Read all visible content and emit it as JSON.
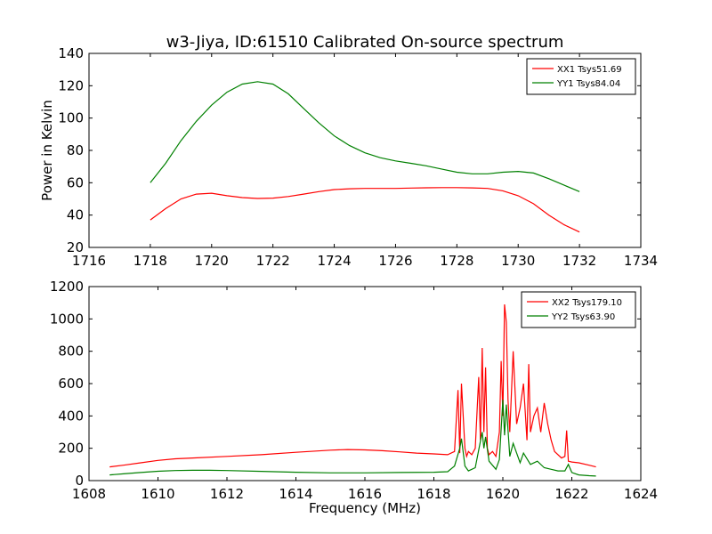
{
  "title": "w3-Jiya, ID:61510 Calibrated On-source spectrum",
  "colors": {
    "red": "#ff0000",
    "green": "#008000",
    "axes": "#000000",
    "background": "#ffffff"
  },
  "chart_data": [
    {
      "type": "line",
      "title": "w3-Jiya, ID:61510 Calibrated On-source spectrum",
      "xlabel": "",
      "ylabel": "Power in Kelvin",
      "xlim": [
        1716,
        1734
      ],
      "ylim": [
        20,
        140
      ],
      "x_ticks": [
        "1716",
        "1718",
        "1720",
        "1722",
        "1724",
        "1726",
        "1728",
        "1730",
        "1732",
        "1734"
      ],
      "y_ticks": [
        "20",
        "40",
        "60",
        "80",
        "100",
        "120",
        "140"
      ],
      "grid": false,
      "legend_position": "top-right",
      "series": [
        {
          "name": "XX1 Tsys51.69",
          "color": "#ff0000",
          "x": [
            1718,
            1718.5,
            1719,
            1719.5,
            1720,
            1720.5,
            1721,
            1721.5,
            1722,
            1722.5,
            1723,
            1723.5,
            1724,
            1724.5,
            1725,
            1725.5,
            1726,
            1726.5,
            1727,
            1727.5,
            1728,
            1728.5,
            1729,
            1729.5,
            1730,
            1730.5,
            1731,
            1731.5,
            1732
          ],
          "y": [
            37,
            44,
            50,
            53,
            53.5,
            52,
            50.8,
            50.3,
            50.5,
            51.5,
            53,
            54.5,
            55.8,
            56.3,
            56.5,
            56.5,
            56.5,
            56.7,
            56.9,
            57,
            57,
            56.8,
            56.5,
            55,
            52,
            47,
            40,
            34,
            29.5
          ]
        },
        {
          "name": "YY1 Tsys84.04",
          "color": "#008000",
          "x": [
            1718,
            1718.5,
            1719,
            1719.5,
            1720,
            1720.5,
            1721,
            1721.5,
            1722,
            1722.5,
            1723,
            1723.5,
            1724,
            1724.5,
            1725,
            1725.5,
            1726,
            1726.5,
            1727,
            1727.5,
            1728,
            1728.5,
            1729,
            1729.5,
            1730,
            1730.5,
            1731,
            1731.5,
            1732
          ],
          "y": [
            60,
            72,
            86,
            98,
            108,
            116,
            121,
            122.5,
            121,
            115,
            106,
            97,
            89,
            83,
            78.5,
            75.5,
            73.5,
            72,
            70.5,
            68.5,
            66.5,
            65.5,
            65.5,
            66.5,
            67,
            66,
            62.5,
            58.5,
            54.5
          ]
        }
      ]
    },
    {
      "type": "line",
      "title": "",
      "xlabel": "Frequency (MHz)",
      "ylabel": "",
      "xlim": [
        1608,
        1624
      ],
      "ylim": [
        0,
        1200
      ],
      "x_ticks": [
        "1608",
        "1610",
        "1612",
        "1614",
        "1616",
        "1618",
        "1620",
        "1622",
        "1624"
      ],
      "y_ticks": [
        "0",
        "200",
        "400",
        "600",
        "800",
        "1000",
        "1200"
      ],
      "grid": false,
      "legend_position": "top-right",
      "series": [
        {
          "name": "XX2 Tsys179.10",
          "color": "#ff0000",
          "x": [
            1608.6,
            1609,
            1609.5,
            1610,
            1610.5,
            1611,
            1612,
            1613,
            1614,
            1615,
            1615.5,
            1616,
            1616.5,
            1617,
            1617.5,
            1618,
            1618.4,
            1618.6,
            1618.7,
            1618.75,
            1618.8,
            1618.9,
            1618.95,
            1619.0,
            1619.1,
            1619.2,
            1619.3,
            1619.35,
            1619.4,
            1619.45,
            1619.5,
            1619.55,
            1619.6,
            1619.7,
            1619.8,
            1619.9,
            1619.95,
            1620.0,
            1620.05,
            1620.1,
            1620.15,
            1620.2,
            1620.3,
            1620.4,
            1620.5,
            1620.6,
            1620.7,
            1620.75,
            1620.8,
            1620.9,
            1621.0,
            1621.1,
            1621.2,
            1621.3,
            1621.4,
            1621.5,
            1621.7,
            1621.8,
            1621.85,
            1621.9,
            1622.0,
            1622.2,
            1622.5,
            1622.7
          ],
          "y": [
            85,
            95,
            110,
            125,
            135,
            140,
            150,
            160,
            175,
            188,
            192,
            190,
            185,
            178,
            170,
            165,
            160,
            180,
            560,
            170,
            600,
            200,
            150,
            180,
            160,
            200,
            640,
            250,
            820,
            300,
            700,
            200,
            160,
            180,
            150,
            300,
            740,
            400,
            1090,
            980,
            500,
            300,
            800,
            350,
            450,
            600,
            250,
            720,
            300,
            400,
            450,
            300,
            480,
            350,
            250,
            180,
            140,
            150,
            310,
            120,
            115,
            110,
            95,
            85
          ]
        },
        {
          "name": "YY2 Tsys63.90",
          "color": "#008000",
          "x": [
            1608.6,
            1609,
            1609.5,
            1610,
            1610.5,
            1611,
            1611.5,
            1612,
            1613,
            1614,
            1615,
            1616,
            1617,
            1618,
            1618.4,
            1618.6,
            1618.75,
            1618.8,
            1618.9,
            1619.0,
            1619.2,
            1619.4,
            1619.45,
            1619.5,
            1619.6,
            1619.8,
            1619.9,
            1620.0,
            1620.05,
            1620.1,
            1620.2,
            1620.3,
            1620.5,
            1620.6,
            1620.8,
            1621.0,
            1621.2,
            1621.4,
            1621.6,
            1621.8,
            1621.9,
            1622.0,
            1622.2,
            1622.5,
            1622.7
          ],
          "y": [
            35,
            42,
            50,
            58,
            62,
            64,
            64,
            62,
            57,
            52,
            48,
            48,
            50,
            52,
            55,
            90,
            200,
            260,
            90,
            60,
            80,
            300,
            200,
            270,
            120,
            70,
            130,
            500,
            280,
            470,
            150,
            230,
            110,
            170,
            100,
            120,
            80,
            70,
            60,
            60,
            100,
            50,
            35,
            30,
            28
          ]
        }
      ]
    }
  ]
}
